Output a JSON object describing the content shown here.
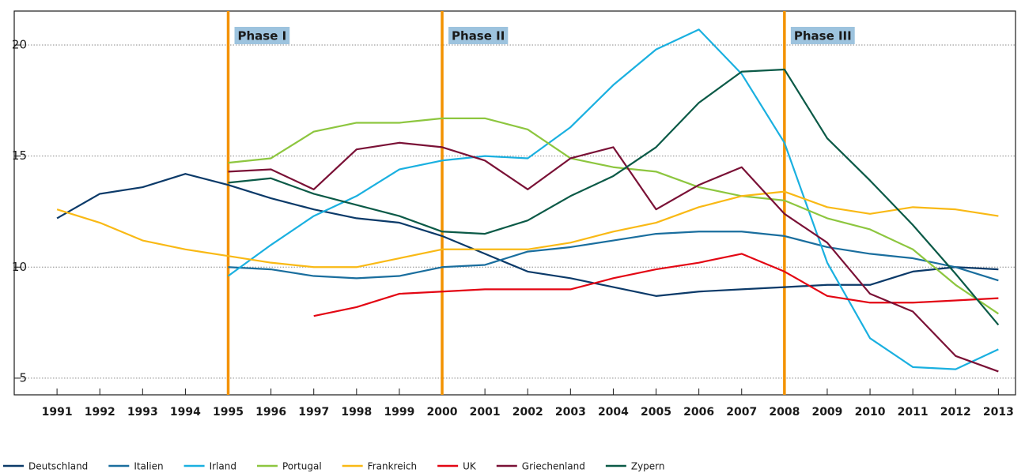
{
  "chart_data": {
    "type": "line",
    "x": [
      1991,
      1992,
      1993,
      1994,
      1995,
      1996,
      1997,
      1998,
      1999,
      2000,
      2001,
      2002,
      2003,
      2004,
      2005,
      2006,
      2007,
      2008,
      2009,
      2010,
      2011,
      2012,
      2013
    ],
    "xlim": [
      1990,
      2013.4
    ],
    "xticks": [
      1991,
      1992,
      1993,
      1994,
      1995,
      1996,
      1997,
      1998,
      1999,
      2000,
      2001,
      2002,
      2003,
      2004,
      2005,
      2006,
      2007,
      2008,
      2009,
      2010,
      2011,
      2012,
      2013
    ],
    "ylim": [
      4.25,
      21.53
    ],
    "yticks": [
      5,
      10,
      15,
      20
    ],
    "grid": true,
    "annotations": [
      {
        "x": 1995,
        "label": "Phase I"
      },
      {
        "x": 2000,
        "label": "Phase II"
      },
      {
        "x": 2008,
        "label": "Phase III"
      }
    ],
    "annotation_color": "#f39200",
    "series": [
      {
        "name": "Deutschland",
        "color": "#0b3a69",
        "values": [
          12.2,
          13.3,
          13.6,
          14.2,
          13.7,
          13.1,
          12.6,
          12.2,
          12.0,
          11.4,
          10.6,
          9.8,
          9.5,
          9.1,
          8.7,
          8.9,
          9.0,
          9.1,
          9.2,
          9.2,
          9.8,
          10.0,
          9.9
        ]
      },
      {
        "name": "Italien",
        "color": "#1a6e9e",
        "values": [
          null,
          null,
          null,
          null,
          10.0,
          9.9,
          9.6,
          9.5,
          9.6,
          10.0,
          10.1,
          10.7,
          10.9,
          11.2,
          11.5,
          11.6,
          11.6,
          11.4,
          10.9,
          10.6,
          10.4,
          10.0,
          9.4
        ]
      },
      {
        "name": "Irland",
        "color": "#1ab0e0",
        "values": [
          null,
          null,
          null,
          null,
          9.6,
          11.0,
          12.3,
          13.2,
          14.4,
          14.8,
          15.0,
          14.9,
          16.3,
          18.2,
          19.8,
          20.7,
          18.7,
          15.6,
          10.2,
          6.8,
          5.5,
          5.4,
          6.3
        ]
      },
      {
        "name": "Portugal",
        "color": "#8dc63f",
        "values": [
          null,
          null,
          null,
          null,
          14.7,
          14.9,
          16.1,
          16.5,
          16.5,
          16.7,
          16.7,
          16.2,
          14.9,
          14.5,
          14.3,
          13.6,
          13.2,
          13.0,
          12.2,
          11.7,
          10.8,
          9.2,
          7.9
        ]
      },
      {
        "name": "Frankreich",
        "color": "#f9b915",
        "values": [
          12.6,
          12.0,
          11.2,
          10.8,
          10.5,
          10.2,
          10.0,
          10.0,
          10.4,
          10.8,
          10.8,
          10.8,
          11.1,
          11.6,
          12.0,
          12.7,
          13.2,
          13.4,
          12.7,
          12.4,
          12.7,
          12.6,
          12.3
        ]
      },
      {
        "name": "UK",
        "color": "#e30613",
        "values": [
          null,
          null,
          null,
          null,
          null,
          null,
          7.8,
          8.2,
          8.8,
          8.9,
          9.0,
          9.0,
          9.0,
          9.5,
          9.9,
          10.2,
          10.6,
          9.8,
          8.7,
          8.4,
          8.4,
          8.5,
          8.6
        ]
      },
      {
        "name": "Griechenland",
        "color": "#7a1136",
        "values": [
          null,
          null,
          null,
          null,
          14.3,
          14.4,
          13.5,
          15.3,
          15.6,
          15.4,
          14.8,
          13.5,
          14.9,
          15.4,
          12.6,
          13.7,
          14.5,
          12.4,
          11.1,
          8.8,
          8.0,
          6.0,
          5.3
        ]
      },
      {
        "name": "Zypern",
        "color": "#0b5a47",
        "values": [
          null,
          null,
          null,
          null,
          13.8,
          14.0,
          13.3,
          12.8,
          12.3,
          11.6,
          11.5,
          12.1,
          13.2,
          14.1,
          15.4,
          17.4,
          18.8,
          18.9,
          15.8,
          13.9,
          11.9,
          9.7,
          7.4
        ]
      }
    ]
  }
}
